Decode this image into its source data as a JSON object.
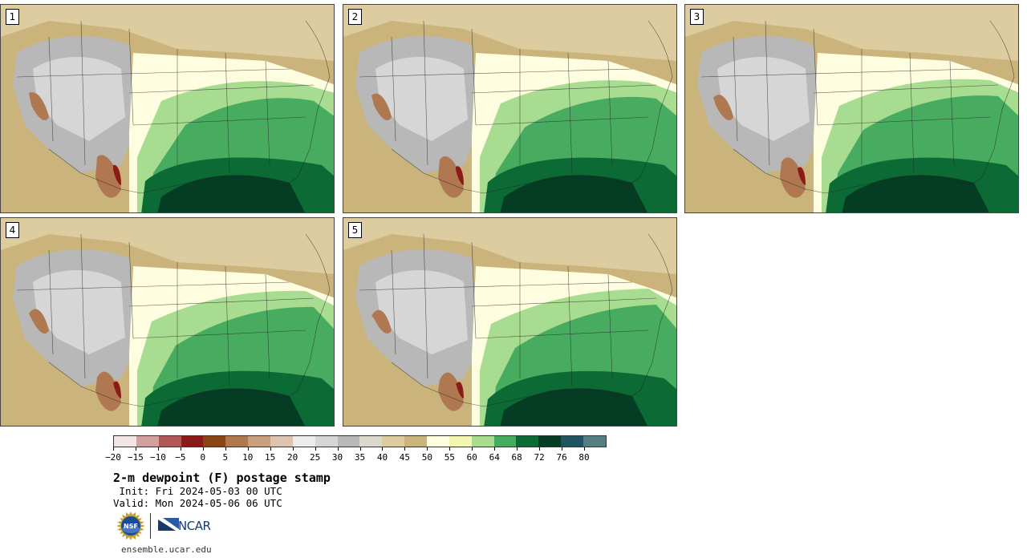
{
  "panels": [
    {
      "label": "1"
    },
    {
      "label": "2"
    },
    {
      "label": "3"
    },
    {
      "label": "4"
    },
    {
      "label": "5"
    }
  ],
  "colorbar": {
    "colors": [
      "#f3e4e4",
      "#d3a0a0",
      "#b05858",
      "#8b1a1a",
      "#8b4513",
      "#b07850",
      "#c8a080",
      "#dcc4b0",
      "#ececec",
      "#d6d6d6",
      "#b8b8b8",
      "#dcd8cc",
      "#dccca0",
      "#cbb47c",
      "#fffde0",
      "#f3f6b0",
      "#a8dc90",
      "#48ac60",
      "#0c6a34",
      "#053c24",
      "#215462",
      "#547e80"
    ],
    "tick_labels": [
      "−20",
      "−15",
      "−10",
      "−5",
      "0",
      "5",
      "10",
      "15",
      "20",
      "25",
      "30",
      "35",
      "40",
      "45",
      "50",
      "55",
      "60",
      "64",
      "68",
      "72",
      "76",
      "80"
    ]
  },
  "title": "2-m dewpoint (F) postage stamp",
  "init": " Init: Fri 2024-05-03 00 UTC",
  "valid": "Valid: Mon 2024-05-06 06 UTC",
  "logos": {
    "ncar": "NCAR",
    "nsf": "NSF"
  },
  "site": "ensemble.ucar.edu"
}
